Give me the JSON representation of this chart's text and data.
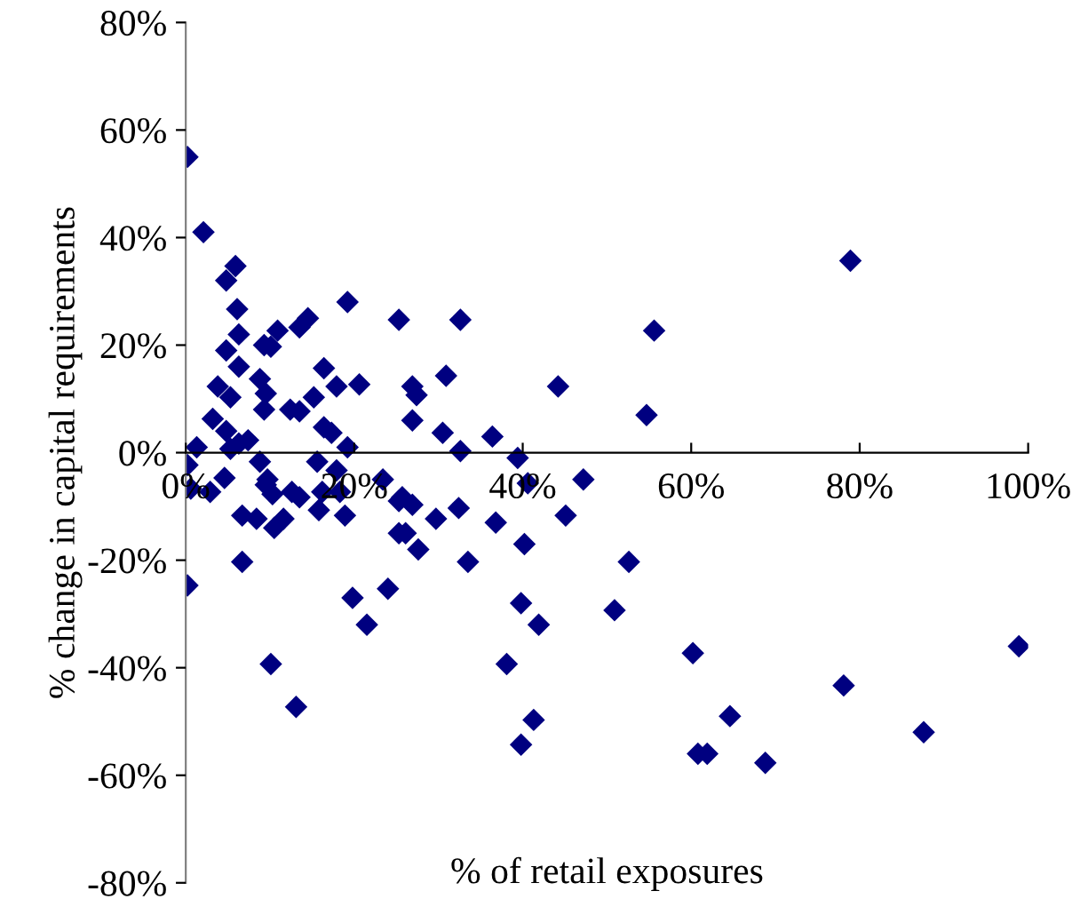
{
  "chart_data": {
    "type": "scatter",
    "xlabel": "% of retail exposures",
    "ylabel": "% change in capital requirements",
    "xlim": [
      0,
      100
    ],
    "ylim": [
      -80,
      80
    ],
    "xticks": [
      {
        "value": 0,
        "label": "0%"
      },
      {
        "value": 20,
        "label": "20%"
      },
      {
        "value": 40,
        "label": "40%"
      },
      {
        "value": 60,
        "label": "60%"
      },
      {
        "value": 80,
        "label": "80%"
      },
      {
        "value": 100,
        "label": "100%"
      }
    ],
    "yticks": [
      {
        "value": -80,
        "label": "-80%"
      },
      {
        "value": -60,
        "label": "-60%"
      },
      {
        "value": -40,
        "label": "-40%"
      },
      {
        "value": -20,
        "label": "-20%"
      },
      {
        "value": 0,
        "label": "0%"
      },
      {
        "value": 20,
        "label": "20%"
      },
      {
        "value": 40,
        "label": "40%"
      },
      {
        "value": 60,
        "label": "60%"
      },
      {
        "value": 80,
        "label": "80%"
      }
    ],
    "grid": false,
    "legend": false,
    "marker": "diamond",
    "series": [
      {
        "color": "#000080",
        "x": [
          0.2,
          2.1,
          5.9,
          4.8,
          6.1,
          19.2,
          25.3,
          6.3,
          10.9,
          14.5,
          13.5,
          4.8,
          9.3,
          10.1,
          6.3,
          16.4,
          8.8,
          17.9,
          20.6,
          3.8,
          5.3,
          9.5,
          9.3,
          12.4,
          13.5,
          15.2,
          3.2,
          4.8,
          16.4,
          17.3,
          19.2,
          1.3,
          5.3,
          7.4,
          6.3,
          0.2,
          8.8,
          15.6,
          17.9,
          4.6,
          9.7,
          23.4,
          0.6,
          2.9,
          9.5,
          10.3,
          12.6,
          13.5,
          16.2,
          18.3,
          25.3,
          6.7,
          8.4,
          10.5,
          11.6,
          15.8,
          18.9,
          25.3,
          6.7,
          0.2,
          19.8,
          21.5,
          24.0,
          10.1,
          13.1,
          32.6,
          55.6,
          26.9,
          27.4,
          30.9,
          44.2,
          54.7,
          26.9,
          30.5,
          32.6,
          36.4,
          39.4,
          40.6,
          47.2,
          25.7,
          26.9,
          29.7,
          32.4,
          36.8,
          45.1,
          26.1,
          27.6,
          33.5,
          40.2,
          52.6,
          39.8,
          41.9,
          50.9,
          38.1,
          60.2,
          41.3,
          39.8,
          60.8,
          61.9,
          64.6,
          98.9,
          78.1,
          87.6,
          68.8,
          78.9
        ],
        "values": [
          55,
          41,
          34.7,
          32,
          26.7,
          28,
          24.7,
          22,
          22.7,
          25,
          23.3,
          19,
          20,
          19.7,
          16,
          15.7,
          13.7,
          12.3,
          12.7,
          12.3,
          10.3,
          11,
          8,
          8,
          7.7,
          10.3,
          6.3,
          4,
          4.7,
          3.7,
          1,
          1,
          0.7,
          2.3,
          1.7,
          -2.3,
          -1.7,
          -1.7,
          -3.3,
          -4.7,
          -5,
          -5,
          -6.7,
          -7.3,
          -6,
          -7.7,
          -7.3,
          -8.3,
          -7.3,
          -7.3,
          -9,
          -11.7,
          -12.3,
          -14,
          -12.3,
          -10.7,
          -11.7,
          -15,
          -20.3,
          -24.7,
          -27,
          -32,
          -25.3,
          -39.3,
          -47.3,
          24.7,
          22.7,
          12.3,
          10.7,
          14.3,
          12.3,
          7,
          6,
          3.7,
          0.3,
          3,
          -1,
          -5.7,
          -5,
          -8.3,
          -9.7,
          -12.3,
          -10.3,
          -13,
          -11.7,
          -15,
          -18,
          -20.3,
          -17,
          -20.3,
          -28,
          -32,
          -29.3,
          -39.3,
          -37.3,
          -49.7,
          -54.3,
          -56,
          -56,
          -49,
          -36,
          -43.3,
          -52,
          -57.7,
          35.7
        ]
      }
    ]
  }
}
